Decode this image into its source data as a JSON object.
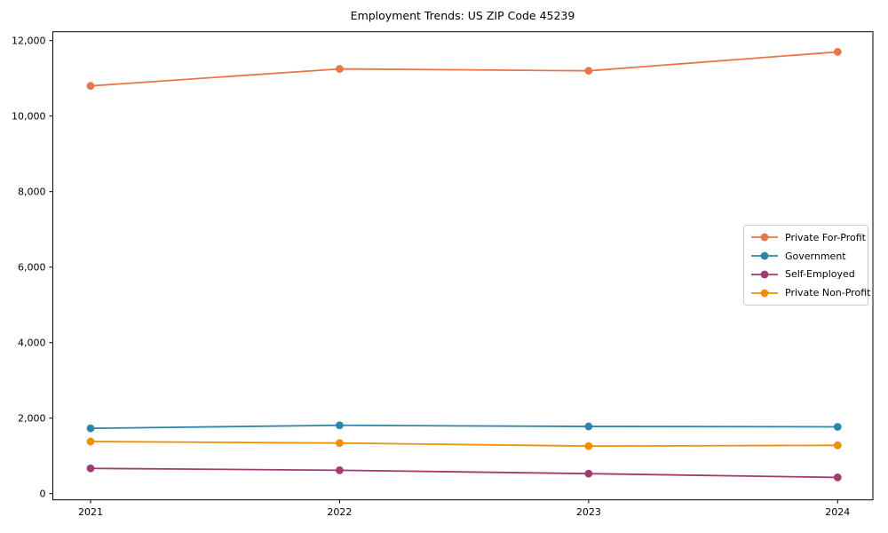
{
  "chart_data": {
    "type": "line",
    "title": "Employment Trends: US ZIP Code 45239",
    "x": [
      2021,
      2022,
      2023,
      2024
    ],
    "xtick_labels": [
      "2021",
      "2022",
      "2023",
      "2024"
    ],
    "yticks": [
      0,
      2000,
      4000,
      6000,
      8000,
      10000,
      12000
    ],
    "ytick_labels": [
      "0",
      "2,000",
      "4,000",
      "6,000",
      "8,000",
      "10,000",
      "12,000"
    ],
    "ylim": [
      0,
      12000
    ],
    "grid": false,
    "legend_position": "center right",
    "series": [
      {
        "name": "Private For-Profit",
        "color": "#e8764b",
        "values": [
          10800,
          11250,
          11200,
          11700
        ]
      },
      {
        "name": "Government",
        "color": "#2e86ab",
        "values": [
          1730,
          1810,
          1780,
          1770
        ]
      },
      {
        "name": "Self-Employed",
        "color": "#a23b72",
        "values": [
          670,
          620,
          530,
          430
        ]
      },
      {
        "name": "Private Non-Profit",
        "color": "#f18f01",
        "values": [
          1380,
          1340,
          1260,
          1280
        ]
      }
    ]
  }
}
